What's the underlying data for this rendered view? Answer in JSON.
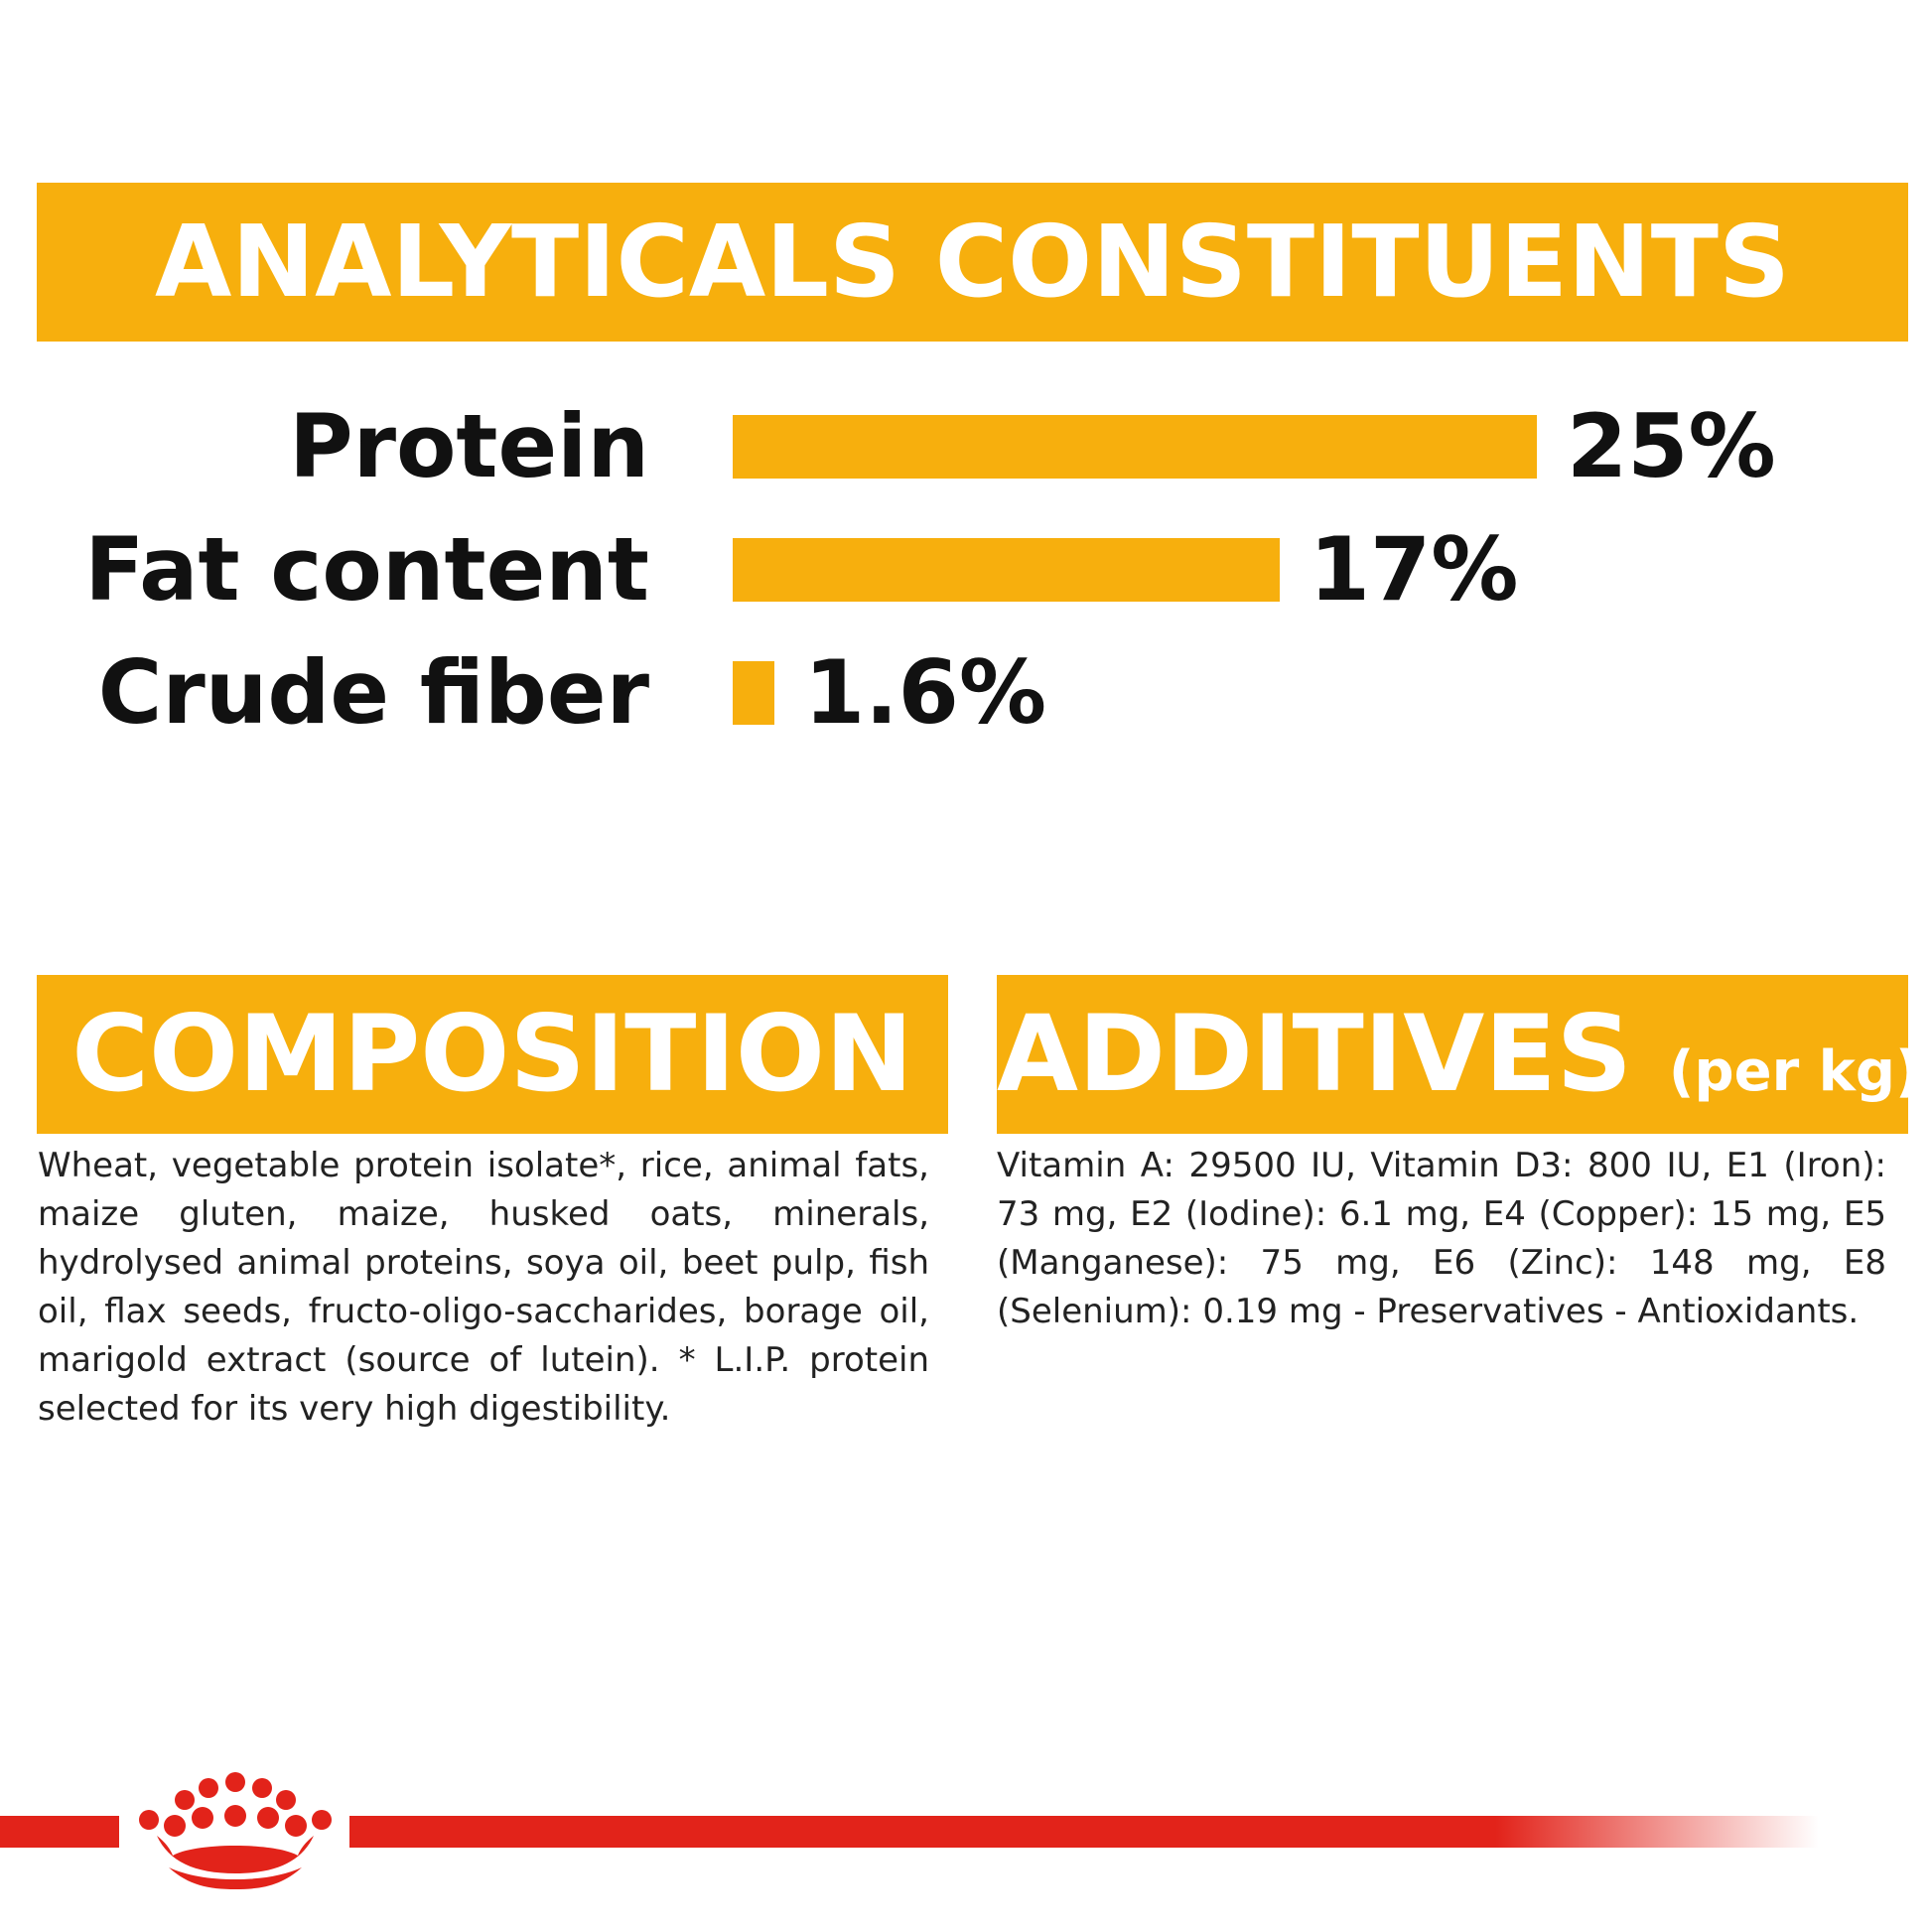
{
  "headings": {
    "analytical": "ANALYTICALS CONSTITUENTS",
    "composition": "COMPOSITION",
    "additives": "ADDITIVES",
    "additives_unit": "(per kg)"
  },
  "chart_data": {
    "type": "bar",
    "orientation": "horizontal",
    "categories": [
      "Protein",
      "Fat content",
      "Crude fiber"
    ],
    "values": [
      25,
      17,
      1.6
    ],
    "value_labels": [
      "25%",
      "17%",
      "1.6%"
    ],
    "unit": "%",
    "xlim": [
      0,
      25
    ],
    "grid": false
  },
  "composition_text": "Wheat, vegetable protein isolate*, rice, animal fats, maize gluten, maize, husked oats, minerals, hydrolysed animal proteins, soya oil, beet pulp, fish oil, flax seeds, fructo-oligo-saccharides, borage oil, marigold extract (source of lutein). * L.I.P. protein selected for its very high digestibility.",
  "additives_text": "Vitamin A: 29500 IU, Vitamin D3: 800 IU, E1 (Iron): 73 mg, E2 (Iodine): 6.1 mg, E4 (Copper): 15 mg, E5 (Manganese): 75 mg, E6 (Zinc): 148 mg, E8 (Selenium): 0.19 mg - Preservatives - Antioxidants.",
  "colors": {
    "accent": "#F7AF0D",
    "brand_red": "#E2231A",
    "text": "#111111"
  },
  "logo": "royal-crown-logo"
}
